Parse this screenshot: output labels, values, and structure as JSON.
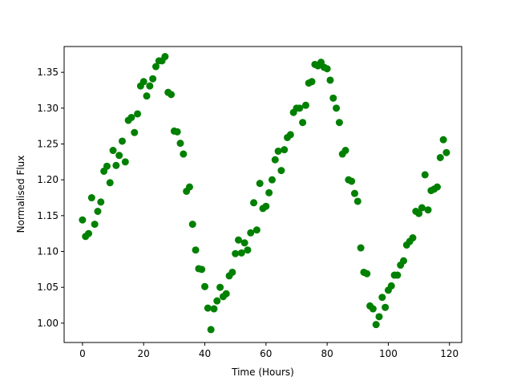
{
  "chart_data": {
    "type": "scatter",
    "title": "",
    "xlabel": "Time (Hours)",
    "ylabel": "Normalised Flux",
    "xlim": [
      -6,
      124
    ],
    "ylim": [
      0.973,
      1.386
    ],
    "grid": false,
    "legend": "none",
    "x_ticks": [
      0,
      20,
      40,
      60,
      80,
      100,
      120
    ],
    "x_tick_labels": [
      "0",
      "20",
      "40",
      "60",
      "80",
      "100",
      "120"
    ],
    "y_ticks": [
      1.0,
      1.05,
      1.1,
      1.15,
      1.2,
      1.25,
      1.3,
      1.35
    ],
    "y_tick_labels": [
      "1.00",
      "1.05",
      "1.10",
      "1.15",
      "1.20",
      "1.25",
      "1.30",
      "1.35"
    ],
    "series": [
      {
        "color": "#008000",
        "points": [
          [
            0,
            1.144
          ],
          [
            1,
            1.121
          ],
          [
            2,
            1.125
          ],
          [
            3,
            1.175
          ],
          [
            4,
            1.138
          ],
          [
            5,
            1.156
          ],
          [
            6,
            1.169
          ],
          [
            7,
            1.212
          ],
          [
            8,
            1.219
          ],
          [
            9,
            1.196
          ],
          [
            10,
            1.241
          ],
          [
            11,
            1.22
          ],
          [
            12,
            1.234
          ],
          [
            13,
            1.254
          ],
          [
            14,
            1.225
          ],
          [
            15,
            1.283
          ],
          [
            16,
            1.287
          ],
          [
            17,
            1.266
          ],
          [
            18,
            1.292
          ],
          [
            19,
            1.331
          ],
          [
            20,
            1.337
          ],
          [
            21,
            1.317
          ],
          [
            22,
            1.331
          ],
          [
            23,
            1.341
          ],
          [
            24,
            1.358
          ],
          [
            25,
            1.366
          ],
          [
            26,
            1.366
          ],
          [
            27,
            1.372
          ],
          [
            28,
            1.322
          ],
          [
            29,
            1.319
          ],
          [
            30,
            1.268
          ],
          [
            31,
            1.267
          ],
          [
            32,
            1.251
          ],
          [
            33,
            1.236
          ],
          [
            34,
            1.184
          ],
          [
            35,
            1.19
          ],
          [
            36,
            1.138
          ],
          [
            37,
            1.102
          ],
          [
            38,
            1.076
          ],
          [
            39,
            1.075
          ],
          [
            40,
            1.051
          ],
          [
            41,
            1.021
          ],
          [
            42,
            0.991
          ],
          [
            43,
            1.02
          ],
          [
            44,
            1.031
          ],
          [
            45,
            1.05
          ],
          [
            46,
            1.037
          ],
          [
            47,
            1.041
          ],
          [
            48,
            1.066
          ],
          [
            49,
            1.071
          ],
          [
            50,
            1.097
          ],
          [
            51,
            1.116
          ],
          [
            52,
            1.098
          ],
          [
            53,
            1.112
          ],
          [
            54,
            1.102
          ],
          [
            55,
            1.126
          ],
          [
            56,
            1.168
          ],
          [
            57,
            1.13
          ],
          [
            58,
            1.195
          ],
          [
            59,
            1.16
          ],
          [
            60,
            1.163
          ],
          [
            61,
            1.182
          ],
          [
            62,
            1.2
          ],
          [
            63,
            1.228
          ],
          [
            64,
            1.24
          ],
          [
            65,
            1.213
          ],
          [
            66,
            1.242
          ],
          [
            67,
            1.259
          ],
          [
            68,
            1.263
          ],
          [
            69,
            1.294
          ],
          [
            70,
            1.3
          ],
          [
            71,
            1.3
          ],
          [
            72,
            1.28
          ],
          [
            73,
            1.304
          ],
          [
            74,
            1.335
          ],
          [
            75,
            1.337
          ],
          [
            76,
            1.361
          ],
          [
            77,
            1.359
          ],
          [
            78,
            1.364
          ],
          [
            79,
            1.357
          ],
          [
            80,
            1.355
          ],
          [
            81,
            1.339
          ],
          [
            82,
            1.314
          ],
          [
            83,
            1.3
          ],
          [
            84,
            1.28
          ],
          [
            85,
            1.236
          ],
          [
            86,
            1.241
          ],
          [
            87,
            1.2
          ],
          [
            88,
            1.198
          ],
          [
            89,
            1.181
          ],
          [
            90,
            1.17
          ],
          [
            91,
            1.105
          ],
          [
            92,
            1.071
          ],
          [
            93,
            1.069
          ],
          [
            94,
            1.024
          ],
          [
            95,
            1.02
          ],
          [
            96,
            0.998
          ],
          [
            97,
            1.009
          ],
          [
            98,
            1.036
          ],
          [
            99,
            1.022
          ],
          [
            100,
            1.046
          ],
          [
            101,
            1.052
          ],
          [
            102,
            1.067
          ],
          [
            103,
            1.067
          ],
          [
            104,
            1.081
          ],
          [
            105,
            1.087
          ],
          [
            106,
            1.109
          ],
          [
            107,
            1.114
          ],
          [
            108,
            1.119
          ],
          [
            109,
            1.156
          ],
          [
            110,
            1.153
          ],
          [
            111,
            1.161
          ],
          [
            112,
            1.207
          ],
          [
            113,
            1.158
          ],
          [
            114,
            1.185
          ],
          [
            115,
            1.187
          ],
          [
            116,
            1.19
          ],
          [
            117,
            1.231
          ],
          [
            118,
            1.256
          ],
          [
            119,
            1.238
          ]
        ]
      }
    ]
  }
}
